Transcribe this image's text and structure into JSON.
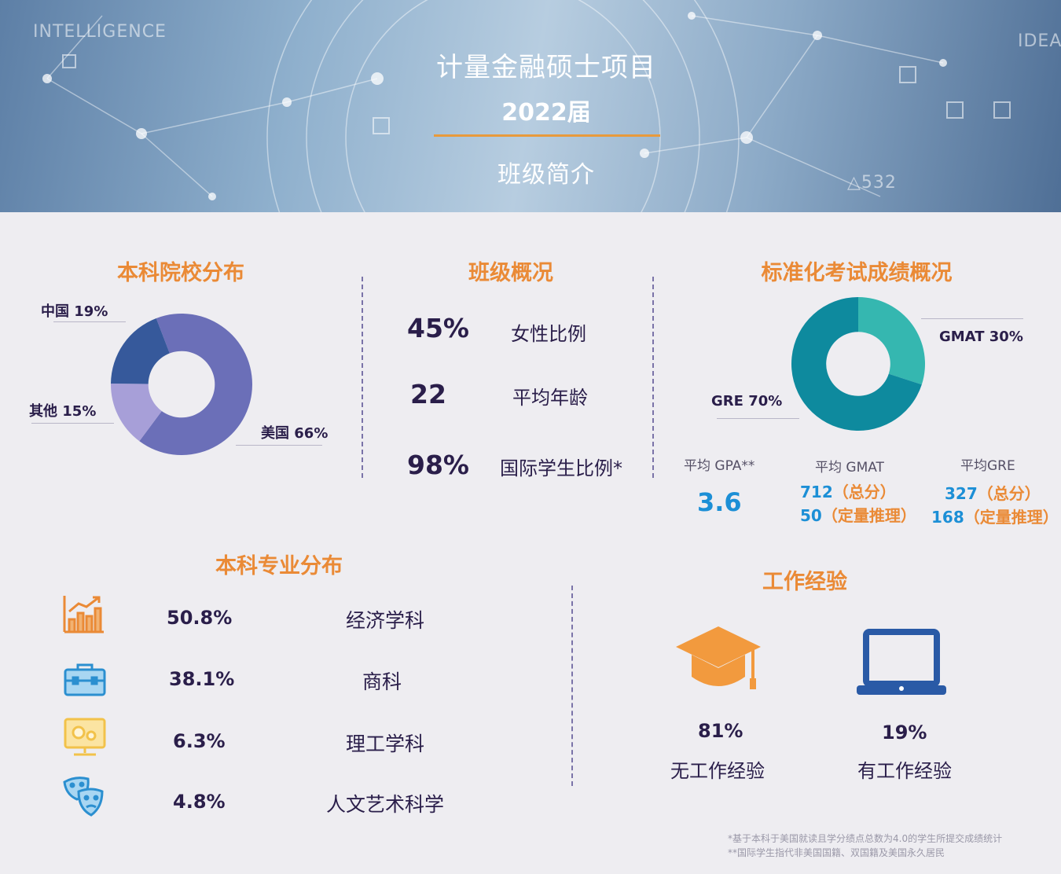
{
  "header": {
    "title": "计量金融硕士项目",
    "year": "2022届",
    "subtitle": "班级简介",
    "bg_left_text": "INTELLIGENCE",
    "bg_right_text": "IDEA",
    "bg_mark": "△532"
  },
  "sections": {
    "undergrad_school": "本科院校分布",
    "class_overview": "班级概况",
    "test_scores": "标准化考试成绩概况",
    "major": "本科专业分布",
    "work": "工作经验"
  },
  "chart_data": [
    {
      "type": "pie",
      "title": "本科院校分布",
      "slices": [
        {
          "label": "美国 66%",
          "value": 66,
          "color": "#6b6fb8"
        },
        {
          "label": "其他 15%",
          "value": 15,
          "color": "#a79fd8"
        },
        {
          "label": "中国 19%",
          "value": 19,
          "color": "#36599b"
        }
      ],
      "donut": true
    },
    {
      "type": "pie",
      "title": "标准化考试成绩概况",
      "slices": [
        {
          "label": "GMAT 30%",
          "value": 30,
          "color": "#35b7b0"
        },
        {
          "label": "GRE 70%",
          "value": 70,
          "color": "#0e8a9e"
        }
      ],
      "donut": true
    }
  ],
  "class_overview": [
    {
      "value": "45%",
      "label": "女性比例"
    },
    {
      "value": "22",
      "label": "平均年龄"
    },
    {
      "value": "98%",
      "label": "国际学生比例*"
    }
  ],
  "scores": {
    "gpa": {
      "label": "平均 GPA**",
      "value": "3.6"
    },
    "gmat": {
      "label": "平均 GMAT",
      "total_num": "712",
      "total_txt": "（总分）",
      "quant_num": "50",
      "quant_txt": "（定量推理）"
    },
    "gre": {
      "label": "平均GRE",
      "total_num": "327",
      "total_txt": "（总分）",
      "quant_num": "168",
      "quant_txt": "（定量推理）"
    }
  },
  "majors": [
    {
      "icon": "bar-growth-icon",
      "percent": "50.8%",
      "name": "经济学科"
    },
    {
      "icon": "briefcase-icon",
      "percent": "38.1%",
      "name": "商科"
    },
    {
      "icon": "monitor-gears-icon",
      "percent": "6.3%",
      "name": "理工学科"
    },
    {
      "icon": "theater-masks-icon",
      "percent": "4.8%",
      "name": "人文艺术科学"
    }
  ],
  "work": [
    {
      "icon": "graduation-cap-icon",
      "percent": "81%",
      "label": "无工作经验"
    },
    {
      "icon": "laptop-icon",
      "percent": "19%",
      "label": "有工作经验"
    }
  ],
  "footnotes": [
    "*基于本科于美国就读且学分绩点总数为4.0的学生所提交成绩统计",
    "**国际学生指代非美国国籍、双国籍及美国永久居民"
  ]
}
